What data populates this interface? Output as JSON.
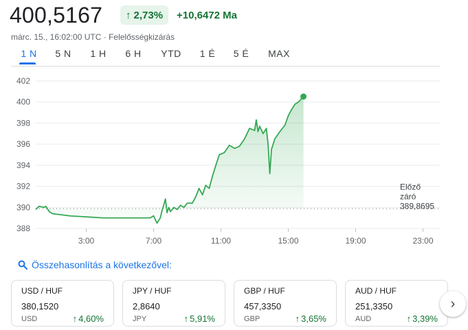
{
  "header": {
    "price": "400,5167",
    "pct_change": "2,73%",
    "abs_change": "+10,6472 Ma",
    "timestamp": "márc. 15., 16:02:00 UTC",
    "separator": " · ",
    "disclaimer": "Felelősségkizárás"
  },
  "tabs": [
    "1 N",
    "5 N",
    "1 H",
    "6 H",
    "YTD",
    "1 É",
    "5 É",
    "MAX"
  ],
  "active_tab": "1 N",
  "colors": {
    "up": "#137333",
    "line": "#34a853",
    "accent": "#1a73e8"
  },
  "chart_data": {
    "type": "area",
    "x_unit": "hour (UTC)",
    "ylim": [
      388,
      402
    ],
    "xlim": [
      0,
      24
    ],
    "yticks": [
      388,
      390,
      392,
      394,
      396,
      398,
      400,
      402
    ],
    "ytick_labels": [
      "388",
      "390",
      "392",
      "394",
      "396",
      "398",
      "400",
      "402"
    ],
    "xticks": [
      3,
      7,
      11,
      15,
      19,
      23
    ],
    "xtick_labels": [
      "3:00",
      "7:00",
      "11:00",
      "15:00",
      "19:00",
      "23:00"
    ],
    "reference_line": {
      "label_lines": [
        "Előző",
        "záró"
      ],
      "value": 389.8695,
      "value_label": "389,8695"
    },
    "grid": true,
    "series": [
      {
        "x": [
          0,
          0.2,
          0.5,
          0.6,
          0.8,
          1.0,
          1.5,
          2,
          3,
          4,
          5,
          6,
          6.8,
          7.0,
          7.2,
          7.4,
          7.5,
          7.6,
          7.7,
          7.8,
          7.9,
          8.0,
          8.2,
          8.4,
          8.6,
          8.8,
          9.0,
          9.3,
          9.5,
          9.7,
          9.9,
          10.1,
          10.3,
          10.5,
          10.7,
          10.9,
          11.2,
          11.5,
          11.8,
          12.1,
          12.4,
          12.7,
          13.0,
          13.1,
          13.2,
          13.3,
          13.5,
          13.7,
          13.8,
          13.9,
          14.0,
          14.2,
          14.5,
          14.8,
          15.0,
          15.2,
          15.4,
          15.6,
          15.9
        ],
        "y": [
          389.8,
          390.1,
          390.0,
          390.1,
          389.6,
          389.4,
          389.3,
          389.2,
          389.1,
          389.0,
          389.0,
          389.0,
          389.0,
          389.2,
          388.5,
          389.0,
          389.7,
          390.2,
          390.8,
          389.5,
          390.0,
          389.6,
          390.0,
          389.8,
          390.2,
          390.0,
          390.4,
          390.4,
          391.0,
          391.8,
          391.2,
          392.1,
          391.8,
          393.0,
          394.0,
          395.0,
          395.2,
          395.9,
          395.6,
          395.8,
          396.5,
          397.5,
          397.3,
          398.3,
          397.2,
          397.7,
          397.0,
          397.5,
          396.0,
          393.2,
          395.5,
          396.5,
          397.2,
          397.8,
          398.7,
          399.3,
          399.8,
          400.0,
          400.52
        ]
      }
    ]
  },
  "compare": {
    "label": "Összehasonlítás a következővel:"
  },
  "cards": [
    {
      "pair": "USD / HUF",
      "value": "380,1520",
      "currency": "USD",
      "change": "4,60%"
    },
    {
      "pair": "JPY / HUF",
      "value": "2,8640",
      "currency": "JPY",
      "change": "5,91%"
    },
    {
      "pair": "GBP / HUF",
      "value": "457,3350",
      "currency": "GBP",
      "change": "3,65%"
    },
    {
      "pair": "AUD / HUF",
      "value": "251,3350",
      "currency": "AUD",
      "change": "3,39%"
    }
  ],
  "icons": {
    "search": "search-icon",
    "next": "chevron-right-icon",
    "up": "arrow-up-icon"
  }
}
